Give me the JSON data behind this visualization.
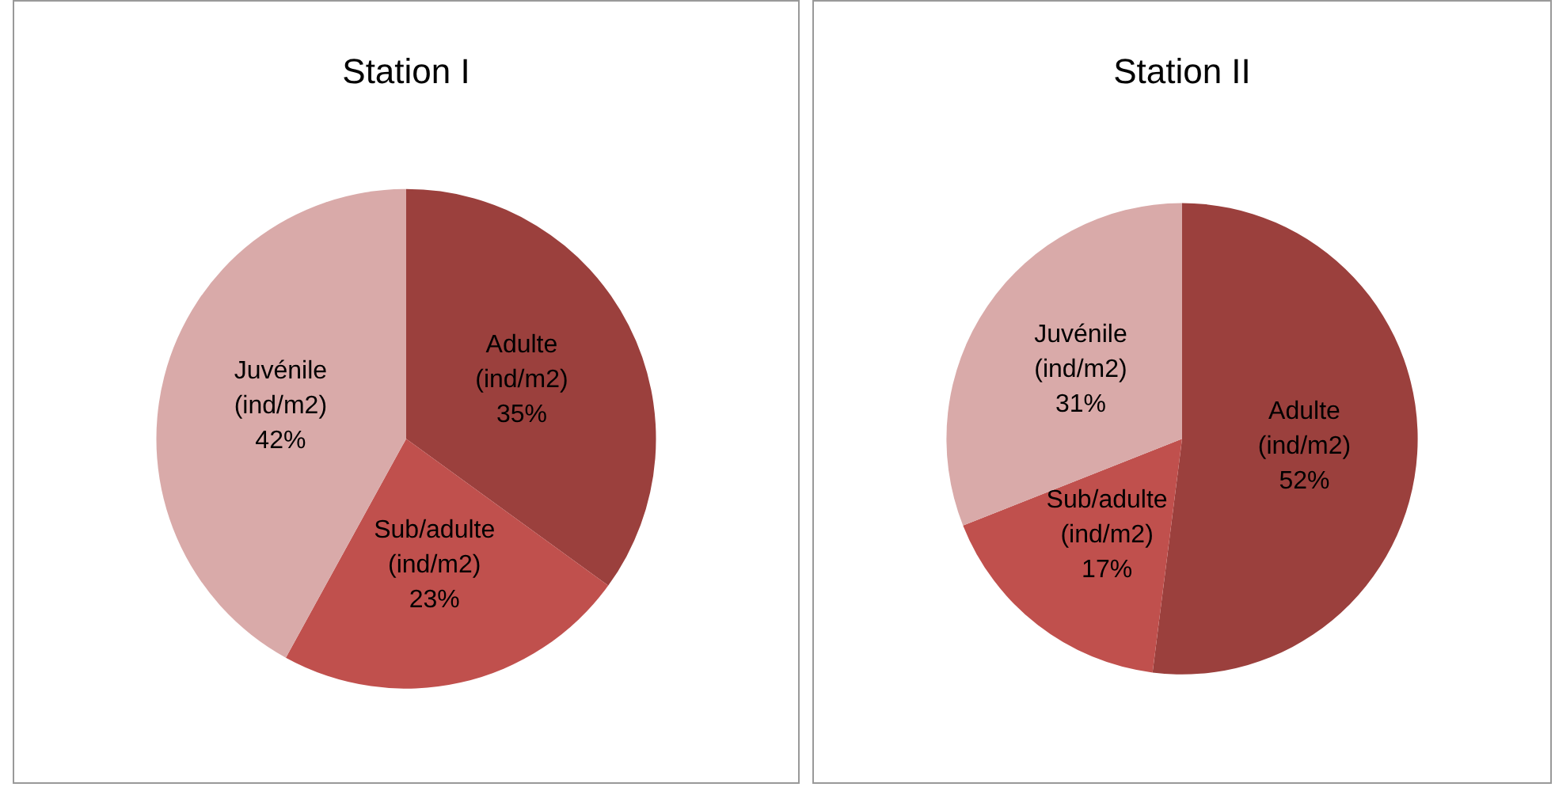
{
  "chart_data": [
    {
      "type": "pie",
      "title": "Station I",
      "categories": [
        "Adulte (ind/m2)",
        "Sub/adulte (ind/m2)",
        "Juvénile (ind/m2)"
      ],
      "values": [
        35,
        23,
        42
      ],
      "value_labels": [
        "35%",
        "23%",
        "42%"
      ],
      "colors": [
        "#9b403d",
        "#c0504d",
        "#d9aaa9"
      ],
      "legend": false
    },
    {
      "type": "pie",
      "title": "Station II",
      "categories": [
        "Adulte (ind/m2)",
        "Sub/adulte (ind/m2)",
        "Juvénile (ind/m2)"
      ],
      "values": [
        52,
        17,
        31
      ],
      "value_labels": [
        "52%",
        "17%",
        "31%"
      ],
      "colors": [
        "#9b403d",
        "#c0504d",
        "#d9aaa9"
      ],
      "legend": false
    }
  ]
}
